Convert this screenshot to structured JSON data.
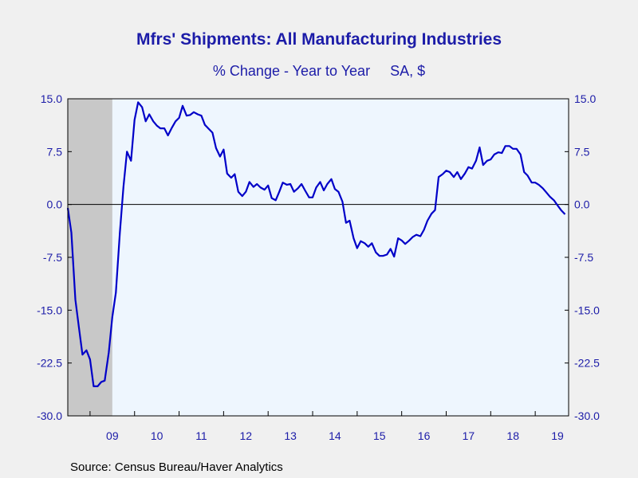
{
  "chart_data": {
    "type": "line",
    "title": "Mfrs' Shipments: All Manufacturing Industries",
    "subtitle": "% Change - Year to Year     SA, $",
    "source": "Source:  Census Bureau/Haver Analytics",
    "ylim": [
      -30.0,
      15.0
    ],
    "yticks": [
      15.0,
      7.5,
      0.0,
      -7.5,
      -15.0,
      -22.5,
      -30.0
    ],
    "ytick_labels": [
      "15.0",
      "7.5",
      "0.0",
      "-7.5",
      "-15.0",
      "-22.5",
      "-30.0"
    ],
    "xlim": [
      2008.5,
      2019.75
    ],
    "x_year_labels": [
      "09",
      "10",
      "11",
      "12",
      "13",
      "14",
      "15",
      "16",
      "17",
      "18",
      "19"
    ],
    "recession_shading": {
      "start": 2008.5,
      "end": 2009.5,
      "color": "#c8c8c8"
    },
    "zero_line": true,
    "grid": false,
    "colors": {
      "line": "#0000c8",
      "plot_bg": "#eef6fe",
      "text": "#1c1ca8",
      "page_bg": "#f0f0f0"
    },
    "series": [
      {
        "values": [
          [
            2008.5,
            -0.5
          ],
          [
            2008.58,
            -4.0
          ],
          [
            2008.67,
            -13.5
          ],
          [
            2008.75,
            -17.5
          ],
          [
            2008.83,
            -21.3
          ],
          [
            2008.92,
            -20.7
          ],
          [
            2009.0,
            -22.0
          ],
          [
            2009.08,
            -25.8
          ],
          [
            2009.17,
            -25.8
          ],
          [
            2009.25,
            -25.2
          ],
          [
            2009.33,
            -25.0
          ],
          [
            2009.42,
            -21.0
          ],
          [
            2009.5,
            -16.0
          ],
          [
            2009.58,
            -12.5
          ],
          [
            2009.67,
            -4.0
          ],
          [
            2009.75,
            2.5
          ],
          [
            2009.83,
            7.5
          ],
          [
            2009.92,
            6.2
          ],
          [
            2010.0,
            12.0
          ],
          [
            2010.08,
            14.5
          ],
          [
            2010.17,
            13.8
          ],
          [
            2010.25,
            11.8
          ],
          [
            2010.33,
            12.8
          ],
          [
            2010.42,
            11.8
          ],
          [
            2010.5,
            11.2
          ],
          [
            2010.58,
            10.8
          ],
          [
            2010.67,
            10.8
          ],
          [
            2010.75,
            9.8
          ],
          [
            2010.83,
            10.8
          ],
          [
            2010.92,
            11.8
          ],
          [
            2011.0,
            12.3
          ],
          [
            2011.08,
            14.0
          ],
          [
            2011.17,
            12.6
          ],
          [
            2011.25,
            12.7
          ],
          [
            2011.33,
            13.1
          ],
          [
            2011.42,
            12.8
          ],
          [
            2011.5,
            12.6
          ],
          [
            2011.58,
            11.3
          ],
          [
            2011.67,
            10.7
          ],
          [
            2011.75,
            10.2
          ],
          [
            2011.83,
            8.0
          ],
          [
            2011.92,
            6.8
          ],
          [
            2012.0,
            7.8
          ],
          [
            2012.08,
            4.4
          ],
          [
            2012.17,
            3.8
          ],
          [
            2012.25,
            4.3
          ],
          [
            2012.33,
            1.8
          ],
          [
            2012.42,
            1.2
          ],
          [
            2012.5,
            1.8
          ],
          [
            2012.58,
            3.2
          ],
          [
            2012.67,
            2.5
          ],
          [
            2012.75,
            2.9
          ],
          [
            2012.83,
            2.4
          ],
          [
            2012.92,
            2.1
          ],
          [
            2013.0,
            2.7
          ],
          [
            2013.08,
            0.9
          ],
          [
            2013.17,
            0.6
          ],
          [
            2013.25,
            1.8
          ],
          [
            2013.33,
            3.1
          ],
          [
            2013.42,
            2.8
          ],
          [
            2013.5,
            2.9
          ],
          [
            2013.58,
            1.8
          ],
          [
            2013.67,
            2.3
          ],
          [
            2013.75,
            2.9
          ],
          [
            2013.83,
            2.0
          ],
          [
            2013.92,
            1.0
          ],
          [
            2014.0,
            1.0
          ],
          [
            2014.08,
            2.4
          ],
          [
            2014.17,
            3.2
          ],
          [
            2014.25,
            2.0
          ],
          [
            2014.33,
            2.9
          ],
          [
            2014.42,
            3.6
          ],
          [
            2014.5,
            2.2
          ],
          [
            2014.58,
            1.8
          ],
          [
            2014.67,
            0.4
          ],
          [
            2014.75,
            -2.6
          ],
          [
            2014.83,
            -2.3
          ],
          [
            2014.92,
            -4.8
          ],
          [
            2015.0,
            -6.2
          ],
          [
            2015.08,
            -5.2
          ],
          [
            2015.17,
            -5.5
          ],
          [
            2015.25,
            -6.0
          ],
          [
            2015.33,
            -5.5
          ],
          [
            2015.42,
            -6.8
          ],
          [
            2015.5,
            -7.3
          ],
          [
            2015.58,
            -7.3
          ],
          [
            2015.67,
            -7.1
          ],
          [
            2015.75,
            -6.3
          ],
          [
            2015.83,
            -7.4
          ],
          [
            2015.92,
            -4.8
          ],
          [
            2016.0,
            -5.1
          ],
          [
            2016.08,
            -5.6
          ],
          [
            2016.17,
            -5.1
          ],
          [
            2016.25,
            -4.6
          ],
          [
            2016.33,
            -4.3
          ],
          [
            2016.42,
            -4.5
          ],
          [
            2016.5,
            -3.6
          ],
          [
            2016.58,
            -2.3
          ],
          [
            2016.67,
            -1.3
          ],
          [
            2016.75,
            -0.8
          ],
          [
            2016.83,
            3.9
          ],
          [
            2016.92,
            4.3
          ],
          [
            2017.0,
            4.8
          ],
          [
            2017.08,
            4.6
          ],
          [
            2017.17,
            3.9
          ],
          [
            2017.25,
            4.6
          ],
          [
            2017.33,
            3.6
          ],
          [
            2017.42,
            4.4
          ],
          [
            2017.5,
            5.3
          ],
          [
            2017.58,
            5.1
          ],
          [
            2017.67,
            6.2
          ],
          [
            2017.75,
            8.1
          ],
          [
            2017.83,
            5.6
          ],
          [
            2017.92,
            6.2
          ],
          [
            2018.0,
            6.4
          ],
          [
            2018.08,
            7.1
          ],
          [
            2018.17,
            7.4
          ],
          [
            2018.25,
            7.3
          ],
          [
            2018.33,
            8.3
          ],
          [
            2018.42,
            8.3
          ],
          [
            2018.5,
            7.9
          ],
          [
            2018.58,
            7.9
          ],
          [
            2018.67,
            7.1
          ],
          [
            2018.75,
            4.6
          ],
          [
            2018.83,
            4.1
          ],
          [
            2018.92,
            3.1
          ],
          [
            2019.0,
            3.1
          ],
          [
            2019.08,
            2.8
          ],
          [
            2019.17,
            2.3
          ],
          [
            2019.25,
            1.7
          ],
          [
            2019.33,
            1.1
          ],
          [
            2019.42,
            0.6
          ],
          [
            2019.5,
            -0.1
          ],
          [
            2019.58,
            -0.8
          ],
          [
            2019.67,
            -1.4
          ]
        ]
      }
    ]
  }
}
